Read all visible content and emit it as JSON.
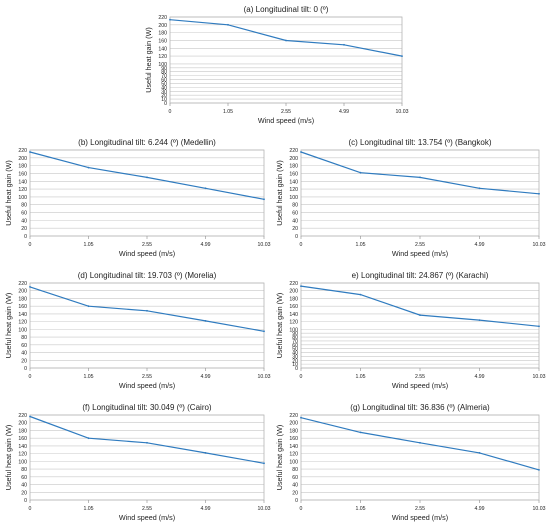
{
  "chart_data": [
    {
      "type": "line",
      "title": "(a) Longitudinal tilt: 0 (º)",
      "xlabel": "Wind speed (m/s)",
      "ylabel": "Useful heat gain (W)",
      "categories": [
        "0",
        "1.05",
        "2.55",
        "4.99",
        "10.03"
      ],
      "values": [
        213,
        200,
        160,
        149,
        120
      ],
      "ylim": [
        0,
        220
      ],
      "yticks": [
        0,
        10,
        20,
        30,
        40,
        50,
        60,
        70,
        80,
        90,
        100,
        120,
        140,
        160,
        180,
        200,
        220
      ],
      "grid": true,
      "color": "#2f7bbf"
    },
    {
      "type": "line",
      "title": "(b) Longitudinal tilt: 6.244 (º) (Medellin)",
      "xlabel": "Wind speed (m/s)",
      "ylabel": "Useful heat gain (W)",
      "categories": [
        "0",
        "1.05",
        "2.55",
        "4.99",
        "10.03"
      ],
      "values": [
        215,
        175,
        150,
        122,
        94
      ],
      "ylim": [
        0,
        220
      ],
      "yticks": [
        0,
        20,
        40,
        60,
        80,
        100,
        120,
        140,
        160,
        180,
        200,
        220
      ],
      "grid": true,
      "color": "#2f7bbf"
    },
    {
      "type": "line",
      "title": "(c) Longitudinal tilt: 13.754 (º) (Bangkok)",
      "xlabel": "Wind speed (m/s)",
      "ylabel": "Useful heat gain (W)",
      "categories": [
        "0",
        "1.05",
        "2.55",
        "4.99",
        "10.03"
      ],
      "values": [
        215,
        162,
        150,
        122,
        108
      ],
      "ylim": [
        0,
        220
      ],
      "yticks": [
        0,
        20,
        40,
        60,
        80,
        100,
        120,
        140,
        160,
        180,
        200,
        220
      ],
      "grid": true,
      "color": "#2f7bbf"
    },
    {
      "type": "line",
      "title": "(d) Longitudinal tilt: 19.703 (º) (Morelia)",
      "xlabel": "Wind speed (m/s)",
      "ylabel": "Useful heat gain (W)",
      "categories": [
        "0",
        "1.05",
        "2.55",
        "4.99",
        "10.03"
      ],
      "values": [
        210,
        160,
        148,
        122,
        95
      ],
      "ylim": [
        0,
        220
      ],
      "yticks": [
        0,
        20,
        40,
        60,
        80,
        100,
        120,
        140,
        160,
        180,
        200,
        220
      ],
      "grid": true,
      "color": "#2f7bbf"
    },
    {
      "type": "line",
      "title": "e) Longitudinal tilt: 24.867 (º) (Karachi)",
      "xlabel": "Wind speed (m/s)",
      "ylabel": "Useful heat gain (W)",
      "categories": [
        "0",
        "1.05",
        "2.55",
        "4.99",
        "10.03"
      ],
      "values": [
        212,
        190,
        137,
        124,
        108
      ],
      "ylim": [
        0,
        220
      ],
      "yticks": [
        0,
        10,
        20,
        30,
        40,
        50,
        60,
        70,
        80,
        90,
        100,
        120,
        140,
        160,
        180,
        200,
        220
      ],
      "grid": true,
      "color": "#2f7bbf"
    },
    {
      "type": "line",
      "title": "(f) Longitudinal tilt: 30.049 (º) (Cairo)",
      "xlabel": "Wind speed (m/s)",
      "ylabel": "Useful heat gain (W)",
      "categories": [
        "0",
        "1.05",
        "2.55",
        "4.99",
        "10.03"
      ],
      "values": [
        216,
        160,
        148,
        122,
        95
      ],
      "ylim": [
        0,
        220
      ],
      "yticks": [
        0,
        20,
        40,
        60,
        80,
        100,
        120,
        140,
        160,
        180,
        200,
        220
      ],
      "grid": true,
      "color": "#2f7bbf"
    },
    {
      "type": "line",
      "title": "(g) Longitudinal tilt: 36.836 (º) (Almeria)",
      "xlabel": "Wind speed (m/s)",
      "ylabel": "Useful heat gain (W)",
      "categories": [
        "0",
        "1.05",
        "2.55",
        "4.99",
        "10.03"
      ],
      "values": [
        213,
        175,
        148,
        122,
        78
      ],
      "ylim": [
        0,
        220
      ],
      "yticks": [
        0,
        20,
        40,
        60,
        80,
        100,
        120,
        140,
        160,
        180,
        200,
        220
      ],
      "grid": true,
      "color": "#2f7bbf"
    }
  ]
}
